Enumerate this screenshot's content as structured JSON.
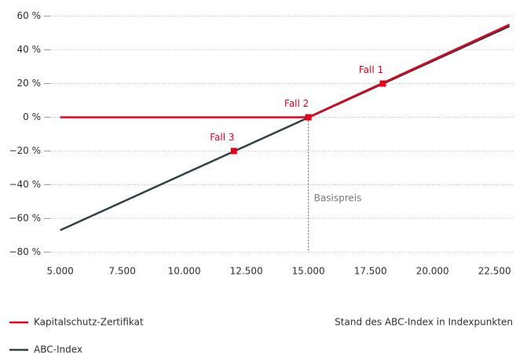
{
  "chart_data": {
    "type": "line",
    "x_label": "Stand des ABC-Index in Indexpunkten",
    "series": [
      {
        "name": "Kapitalschutz-Zertifikat",
        "color": "#e2001a",
        "x": [
          5000,
          15000,
          23100
        ],
        "values": [
          0,
          0,
          55
        ]
      },
      {
        "name": "ABC-Index",
        "color": "#2f4246",
        "x": [
          5000,
          23100
        ],
        "values": [
          -67,
          54
        ]
      }
    ],
    "points": [
      {
        "label": "Fall 1",
        "x": 18000,
        "value": 20
      },
      {
        "label": "Fall 2",
        "x": 15000,
        "value": 0
      },
      {
        "label": "Fall 3",
        "x": 12000,
        "value": -20
      }
    ],
    "points_color": "#e2001a",
    "vline": {
      "label": "Basispreis",
      "x": 15000
    },
    "xlim": [
      4600,
      23300
    ],
    "ylim": [
      -84,
      64
    ],
    "xticks": [
      {
        "value": 5000,
        "label": "5.000"
      },
      {
        "value": 7500,
        "label": "7.500"
      },
      {
        "value": 10000,
        "label": "10.000"
      },
      {
        "value": 12500,
        "label": "12.500"
      },
      {
        "value": 15000,
        "label": "15.000"
      },
      {
        "value": 17500,
        "label": "17.500"
      },
      {
        "value": 20000,
        "label": "20.000"
      },
      {
        "value": 22500,
        "label": "22.500"
      }
    ],
    "yticks": [
      {
        "value": 60,
        "label": "60 %"
      },
      {
        "value": 40,
        "label": "40 %"
      },
      {
        "value": 20,
        "label": "20 %"
      },
      {
        "value": 0,
        "label": "0 %"
      },
      {
        "value": -20,
        "label": "−20 %"
      },
      {
        "value": -40,
        "label": "−40 %"
      },
      {
        "value": -60,
        "label": "−60 %"
      },
      {
        "value": -80,
        "label": "−80 %"
      }
    ],
    "grid": true
  }
}
